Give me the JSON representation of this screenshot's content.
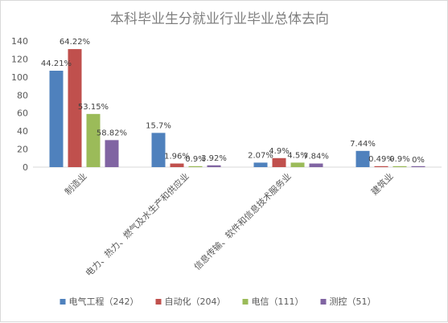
{
  "chart_data": {
    "type": "bar",
    "title": "本科毕业生分就业行业毕业总体去向",
    "categories": [
      "制造业",
      "电力、热力、燃气及水生产和供应业",
      "信息传输、软件和信息技术服务业",
      "建筑业"
    ],
    "ylim": [
      0,
      140
    ],
    "yticks": [
      0,
      20,
      40,
      60,
      80,
      100,
      120,
      140
    ],
    "grid": false,
    "legend": "bottom",
    "series": [
      {
        "name": "电气工程（242）",
        "color": "#4f81bd",
        "values": [
          107,
          38,
          5,
          18
        ],
        "labels": [
          "44.21%",
          "15.7%",
          "2.07%",
          "7.44%"
        ]
      },
      {
        "name": "自动化（204）",
        "color": "#c0504d",
        "values": [
          131,
          4,
          10,
          1
        ],
        "labels": [
          "64.22%",
          "1.96%",
          "4.9%",
          "0.49%"
        ]
      },
      {
        "name": "电信（111）",
        "color": "#9bbb59",
        "values": [
          59,
          1,
          5,
          1
        ],
        "labels": [
          "53.15%",
          "0.9%",
          "4.5%",
          "0.9%"
        ]
      },
      {
        "name": "测控（51）",
        "color": "#8064a2",
        "values": [
          30,
          2,
          4,
          0
        ],
        "labels": [
          "58.82%",
          "3.92%",
          "7.84%",
          "0%"
        ]
      }
    ]
  }
}
